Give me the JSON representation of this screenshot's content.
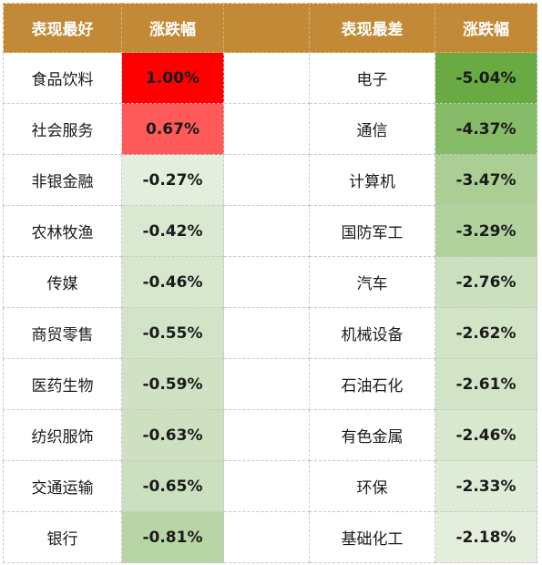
{
  "header": {
    "best_label": "表现最好",
    "change_label": "涨跌幅",
    "worst_label": "表现最差",
    "change_label_2": "涨跌幅"
  },
  "best": [
    {
      "name": "食品饮料",
      "value": "1.00%",
      "bg": "#ff0000"
    },
    {
      "name": "社会服务",
      "value": "0.67%",
      "bg": "#ff5a5a"
    },
    {
      "name": "非银金融",
      "value": "-0.27%",
      "bg": "#e4eedd"
    },
    {
      "name": "农林牧渔",
      "value": "-0.42%",
      "bg": "#d9e8d0"
    },
    {
      "name": "传媒",
      "value": "-0.46%",
      "bg": "#d7e7cd"
    },
    {
      "name": "商贸零售",
      "value": "-0.55%",
      "bg": "#d2e4c7"
    },
    {
      "name": "医药生物",
      "value": "-0.59%",
      "bg": "#cfe2c3"
    },
    {
      "name": "纺织服饰",
      "value": "-0.63%",
      "bg": "#cde1c0"
    },
    {
      "name": "交通运输",
      "value": "-0.65%",
      "bg": "#cbe0be"
    },
    {
      "name": "银行",
      "value": "-0.81%",
      "bg": "#b8d5a5"
    }
  ],
  "worst": [
    {
      "name": "电子",
      "value": "-5.04%",
      "bg": "#6aaa42"
    },
    {
      "name": "通信",
      "value": "-4.37%",
      "bg": "#86bb68"
    },
    {
      "name": "计算机",
      "value": "-3.47%",
      "bg": "#abce94"
    },
    {
      "name": "国防军工",
      "value": "-3.29%",
      "bg": "#b2d29d"
    },
    {
      "name": "汽车",
      "value": "-2.76%",
      "bg": "#cbe0be"
    },
    {
      "name": "机械设备",
      "value": "-2.62%",
      "bg": "#d1e4c5"
    },
    {
      "name": "石油石化",
      "value": "-2.61%",
      "bg": "#d2e4c6"
    },
    {
      "name": "有色金属",
      "value": "-2.46%",
      "bg": "#d8e8cf"
    },
    {
      "name": "环保",
      "value": "-2.33%",
      "bg": "#deebd6"
    },
    {
      "name": "基础化工",
      "value": "-2.18%",
      "bg": "#e4eedd"
    }
  ]
}
